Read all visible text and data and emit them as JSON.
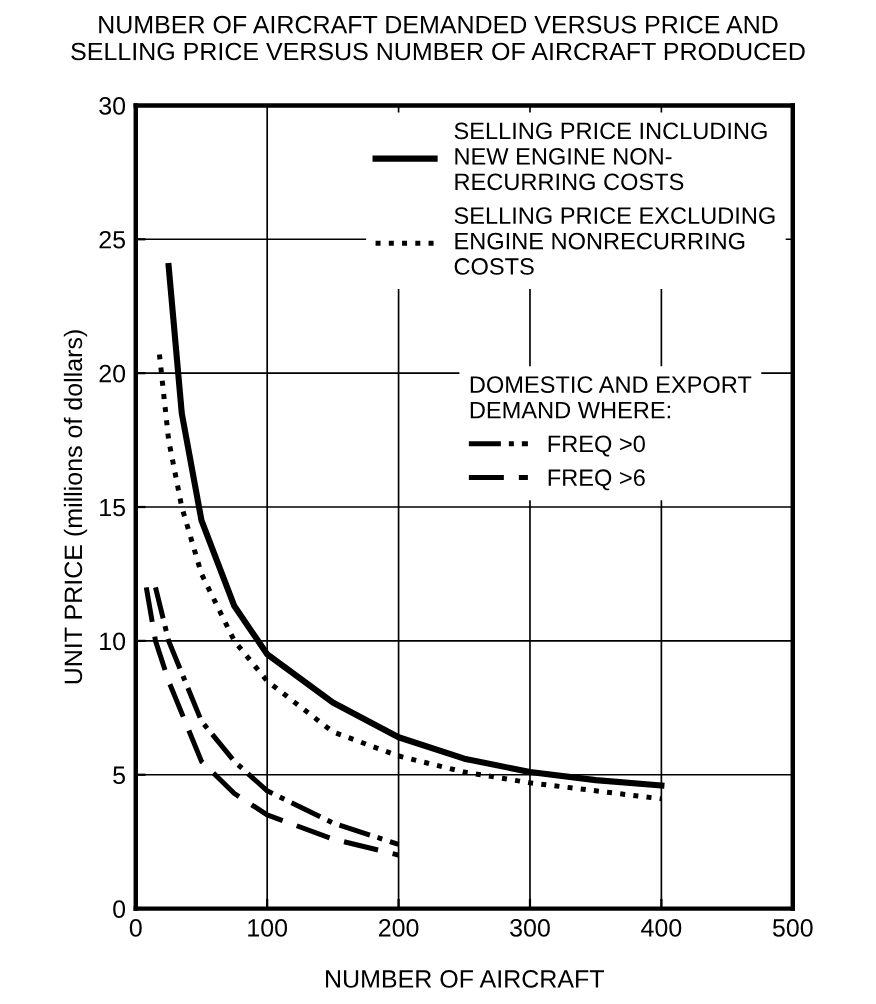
{
  "chart_data": {
    "type": "line",
    "title": "NUMBER OF AIRCRAFT DEMANDED VERSUS PRICE AND\nSELLING PRICE VERSUS NUMBER OF AIRCRAFT PRODUCED",
    "xlabel": "NUMBER OF AIRCRAFT",
    "ylabel": "UNIT PRICE (millions of dollars)",
    "legend_title": "DOMESTIC AND EXPORT\nDEMAND WHERE:",
    "series": [
      {
        "name": "SELLING PRICE INCLUDING\nNEW ENGINE NON-\nRECURRING COSTS",
        "color": "#000000",
        "line_style": "solid",
        "x": [
          25,
          35,
          50,
          75,
          100,
          150,
          200,
          250,
          300,
          350,
          400
        ],
        "values": [
          24,
          18.5,
          14.5,
          11.3,
          9.5,
          7.7,
          6.4,
          5.6,
          5.1,
          4.8,
          4.6
        ]
      },
      {
        "name": "SELLING PRICE EXCLUDING\nENGINE NONRECURRING\nCOSTS",
        "color": "#000000",
        "line_style": "dotted",
        "x": [
          18,
          25,
          35,
          50,
          75,
          100,
          150,
          200,
          250,
          300,
          350,
          400
        ],
        "values": [
          20.7,
          17.5,
          15,
          12.5,
          10,
          8.5,
          6.6,
          5.7,
          5.1,
          4.7,
          4.4,
          4.1
        ]
      },
      {
        "name": "FREQ >0",
        "color": "#000000",
        "line_style": "dashdot",
        "x": [
          15,
          25,
          50,
          75,
          100,
          150,
          200
        ],
        "values": [
          12,
          10,
          7,
          5.5,
          4.4,
          3.2,
          2.4
        ]
      },
      {
        "name": "FREQ >6",
        "color": "#000000",
        "line_style": "dashed",
        "x": [
          8,
          15,
          25,
          50,
          75,
          100,
          150,
          200
        ],
        "values": [
          12,
          10,
          8.5,
          5.5,
          4.3,
          3.5,
          2.6,
          2.0
        ]
      }
    ],
    "xlim": [
      0,
      500
    ],
    "xticks": [
      0,
      100,
      200,
      300,
      400,
      500
    ],
    "ylim": [
      0,
      30
    ],
    "yticks": [
      0,
      5,
      10,
      15,
      20,
      25,
      30
    ],
    "grid": true,
    "legend": "top right"
  }
}
